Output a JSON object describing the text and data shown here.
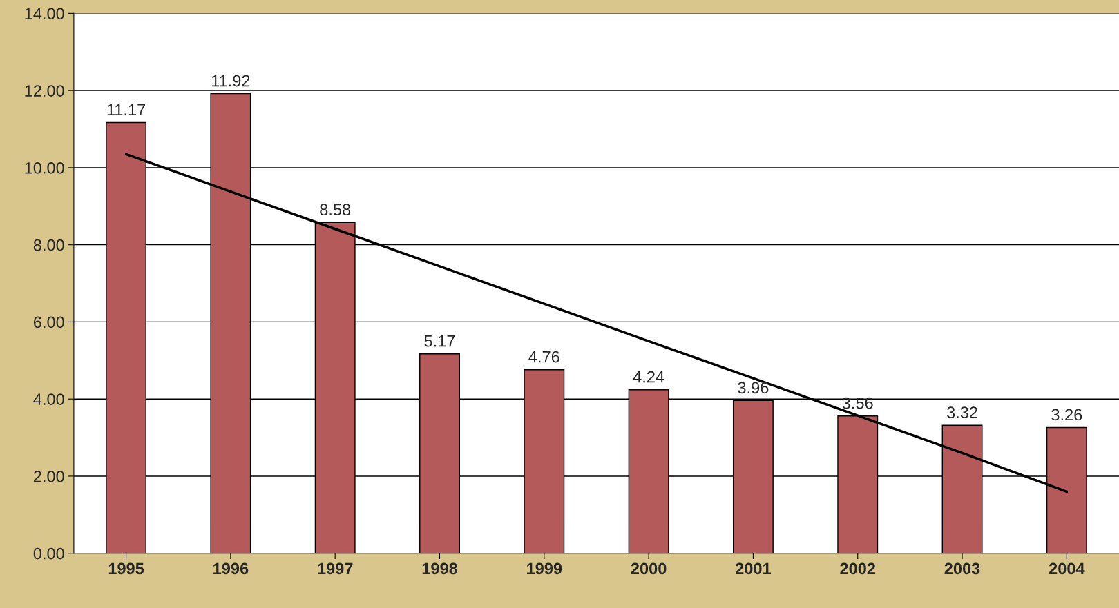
{
  "chart_data": {
    "type": "bar",
    "categories": [
      "1995",
      "1996",
      "1997",
      "1998",
      "1999",
      "2000",
      "2001",
      "2002",
      "2003",
      "2004"
    ],
    "series": [
      {
        "color": "#b45a5a",
        "values": [
          11.17,
          11.92,
          8.58,
          5.17,
          4.76,
          4.24,
          3.96,
          3.56,
          3.32,
          3.26
        ],
        "data_labels": true
      },
      {
        "type": "line",
        "color": "#000000",
        "values": [
          10.35,
          9.38,
          8.41,
          7.44,
          6.47,
          5.5,
          4.54,
          3.57,
          2.6,
          1.6
        ]
      }
    ],
    "ylim": [
      0,
      14
    ],
    "yticks": [
      {
        "value": 0,
        "label": "0.00"
      },
      {
        "value": 2,
        "label": "2.00"
      },
      {
        "value": 4,
        "label": "4.00"
      },
      {
        "value": 6,
        "label": "6.00"
      },
      {
        "value": 8,
        "label": "8.00"
      },
      {
        "value": 10,
        "label": "10.00"
      },
      {
        "value": 12,
        "label": "12.00"
      },
      {
        "value": 14,
        "label": "14.00"
      }
    ],
    "grid": "y",
    "legend": false
  }
}
